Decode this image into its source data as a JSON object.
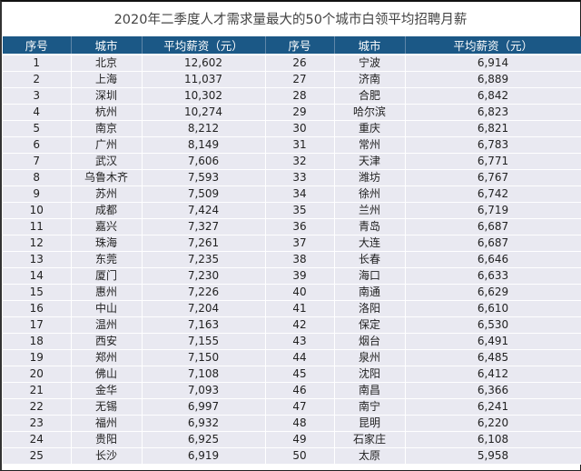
{
  "title": "2020年二季度人才需求量最大的50个城市白领平均招聘月薪",
  "headers": [
    "序号",
    "城市",
    "平均薪资（元）",
    "序号",
    "城市",
    "平均薪资（元）"
  ],
  "colors": {
    "header_bg": "#1b5886",
    "row_bg": "#e9e9f1"
  },
  "rows": [
    {
      "l": {
        "rank": "1",
        "city": "北京",
        "salary": "12,602"
      },
      "r": {
        "rank": "26",
        "city": "宁波",
        "salary": "6,914"
      }
    },
    {
      "l": {
        "rank": "2",
        "city": "上海",
        "salary": "11,037"
      },
      "r": {
        "rank": "27",
        "city": "济南",
        "salary": "6,889"
      }
    },
    {
      "l": {
        "rank": "3",
        "city": "深圳",
        "salary": "10,302"
      },
      "r": {
        "rank": "28",
        "city": "合肥",
        "salary": "6,842"
      }
    },
    {
      "l": {
        "rank": "4",
        "city": "杭州",
        "salary": "10,274"
      },
      "r": {
        "rank": "29",
        "city": "哈尔滨",
        "salary": "6,823"
      }
    },
    {
      "l": {
        "rank": "5",
        "city": "南京",
        "salary": "8,212"
      },
      "r": {
        "rank": "30",
        "city": "重庆",
        "salary": "6,821"
      }
    },
    {
      "l": {
        "rank": "6",
        "city": "广州",
        "salary": "8,149"
      },
      "r": {
        "rank": "31",
        "city": "常州",
        "salary": "6,783"
      }
    },
    {
      "l": {
        "rank": "7",
        "city": "武汉",
        "salary": "7,606"
      },
      "r": {
        "rank": "32",
        "city": "天津",
        "salary": "6,771"
      }
    },
    {
      "l": {
        "rank": "8",
        "city": "乌鲁木齐",
        "salary": "7,593"
      },
      "r": {
        "rank": "33",
        "city": "潍坊",
        "salary": "6,767"
      }
    },
    {
      "l": {
        "rank": "9",
        "city": "苏州",
        "salary": "7,509"
      },
      "r": {
        "rank": "34",
        "city": "徐州",
        "salary": "6,742"
      }
    },
    {
      "l": {
        "rank": "10",
        "city": "成都",
        "salary": "7,424"
      },
      "r": {
        "rank": "35",
        "city": "兰州",
        "salary": "6,719"
      }
    },
    {
      "l": {
        "rank": "11",
        "city": "嘉兴",
        "salary": "7,327"
      },
      "r": {
        "rank": "36",
        "city": "青岛",
        "salary": "6,687"
      }
    },
    {
      "l": {
        "rank": "12",
        "city": "珠海",
        "salary": "7,261"
      },
      "r": {
        "rank": "37",
        "city": "大连",
        "salary": "6,687"
      }
    },
    {
      "l": {
        "rank": "13",
        "city": "东莞",
        "salary": "7,235"
      },
      "r": {
        "rank": "38",
        "city": "长春",
        "salary": "6,646"
      }
    },
    {
      "l": {
        "rank": "14",
        "city": "厦门",
        "salary": "7,230"
      },
      "r": {
        "rank": "39",
        "city": "海口",
        "salary": "6,633"
      }
    },
    {
      "l": {
        "rank": "15",
        "city": "惠州",
        "salary": "7,226"
      },
      "r": {
        "rank": "40",
        "city": "南通",
        "salary": "6,629"
      }
    },
    {
      "l": {
        "rank": "16",
        "city": "中山",
        "salary": "7,204"
      },
      "r": {
        "rank": "41",
        "city": "洛阳",
        "salary": "6,610"
      }
    },
    {
      "l": {
        "rank": "17",
        "city": "温州",
        "salary": "7,163"
      },
      "r": {
        "rank": "42",
        "city": "保定",
        "salary": "6,530"
      }
    },
    {
      "l": {
        "rank": "18",
        "city": "西安",
        "salary": "7,155"
      },
      "r": {
        "rank": "43",
        "city": "烟台",
        "salary": "6,491"
      }
    },
    {
      "l": {
        "rank": "19",
        "city": "郑州",
        "salary": "7,150"
      },
      "r": {
        "rank": "44",
        "city": "泉州",
        "salary": "6,485"
      }
    },
    {
      "l": {
        "rank": "20",
        "city": "佛山",
        "salary": "7,108"
      },
      "r": {
        "rank": "45",
        "city": "沈阳",
        "salary": "6,412"
      }
    },
    {
      "l": {
        "rank": "21",
        "city": "金华",
        "salary": "7,093"
      },
      "r": {
        "rank": "46",
        "city": "南昌",
        "salary": "6,366"
      }
    },
    {
      "l": {
        "rank": "22",
        "city": "无锡",
        "salary": "6,997"
      },
      "r": {
        "rank": "47",
        "city": "南宁",
        "salary": "6,241"
      }
    },
    {
      "l": {
        "rank": "23",
        "city": "福州",
        "salary": "6,932"
      },
      "r": {
        "rank": "48",
        "city": "昆明",
        "salary": "6,220"
      }
    },
    {
      "l": {
        "rank": "24",
        "city": "贵阳",
        "salary": "6,925"
      },
      "r": {
        "rank": "49",
        "city": "石家庄",
        "salary": "6,108"
      }
    },
    {
      "l": {
        "rank": "25",
        "city": "长沙",
        "salary": "6,919"
      },
      "r": {
        "rank": "50",
        "city": "太原",
        "salary": "5,958"
      }
    }
  ]
}
